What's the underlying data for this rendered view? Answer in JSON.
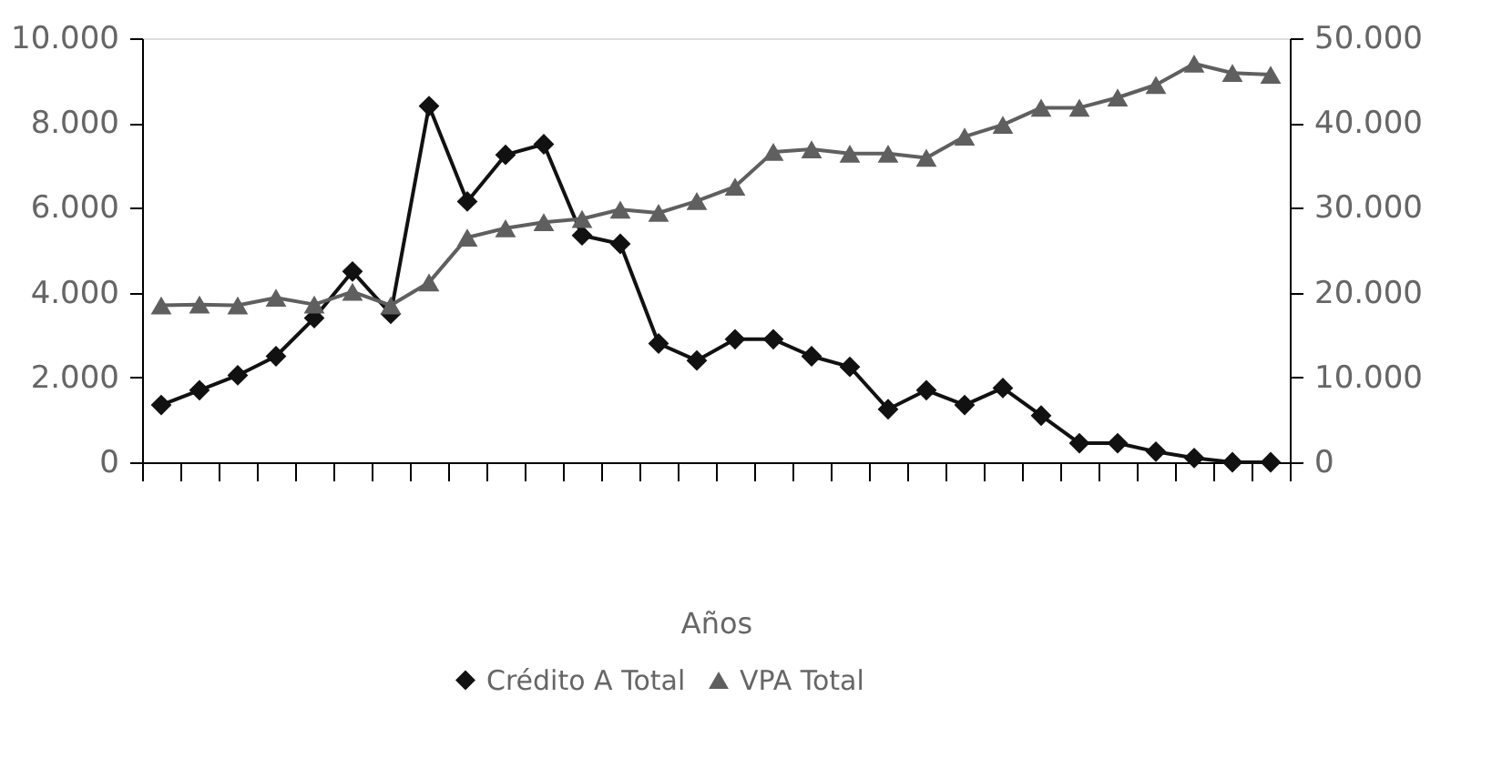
{
  "chart_data": {
    "type": "line",
    "xlabel": "Años",
    "categories": [
      null,
      null,
      null,
      null,
      null,
      null,
      null,
      null,
      null,
      null,
      null,
      null,
      null,
      null,
      null,
      null,
      null,
      null,
      null,
      null,
      null,
      null,
      null,
      null,
      null,
      null,
      null,
      null,
      null,
      null
    ],
    "series": [
      {
        "name": "Crédito A Total",
        "color": "#111111",
        "marker": "diamond",
        "values": [
          1350,
          1700,
          2050,
          2500,
          3400,
          4500,
          3500,
          8400,
          6150,
          7250,
          7500,
          5350,
          5150,
          2800,
          2400,
          2900,
          2900,
          2500,
          2250,
          1250,
          1700,
          1350,
          1750,
          1100,
          450,
          450,
          250,
          100,
          0,
          0
        ]
      },
      {
        "name": "VPA Total",
        "color": "#5f5f5f",
        "marker": "triangle",
        "axis": "y2",
        "values": [
          18500,
          18600,
          18500,
          19400,
          18600,
          20100,
          18500,
          21200,
          26500,
          27600,
          28300,
          28700,
          29800,
          29400,
          30800,
          32500,
          36600,
          36900,
          36400,
          36400,
          35900,
          38400,
          39800,
          41800,
          41800,
          43000,
          44500,
          47000,
          45900,
          45700
        ]
      }
    ],
    "ylim": [
      0,
      10000
    ],
    "yticks": [
      0,
      {
        "value": 2000,
        "label": "2.000"
      },
      {
        "value": 4000,
        "label": "4.000"
      },
      {
        "value": 6000,
        "label": "6.000"
      },
      {
        "value": 8000,
        "label": "8.000"
      },
      {
        "value": 10000,
        "label": "10.000"
      }
    ],
    "y2lim": [
      0,
      50000
    ],
    "y2ticks": [
      0,
      {
        "value": 10000,
        "label": "10.000"
      },
      {
        "value": 20000,
        "label": "20.000"
      },
      {
        "value": 30000,
        "label": "30.000"
      },
      {
        "value": 40000,
        "label": "40.000"
      },
      {
        "value": 50000,
        "label": "50.000"
      }
    ],
    "tick_labels": "y",
    "grid": false,
    "legend": "bottom",
    "line_style": "solid"
  }
}
